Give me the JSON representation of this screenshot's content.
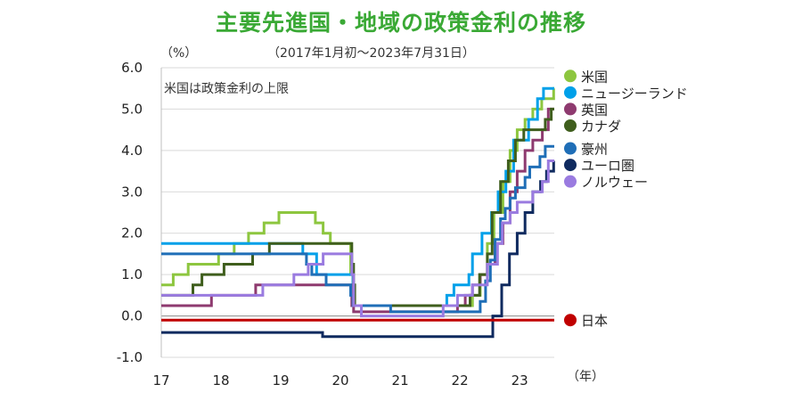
{
  "title": "主要先進国・地域の政策金利の推移",
  "subtitle": "（2017年1月初～2023年7月31日）",
  "y_unit": "（%）",
  "x_unit": "（年）",
  "note": "米国は政策金利の上限",
  "chart_data": {
    "type": "line",
    "step": true,
    "ylim": [
      -1.0,
      6.0
    ],
    "yticks": [
      "6.0",
      "5.0",
      "4.0",
      "3.0",
      "2.0",
      "1.0",
      "0.0",
      "-1.0"
    ],
    "xlim": [
      2017.0,
      2023.58
    ],
    "xticks": [
      {
        "value": 2017,
        "label": "17"
      },
      {
        "value": 2018,
        "label": "18"
      },
      {
        "value": 2019,
        "label": "19"
      },
      {
        "value": 2020,
        "label": "20"
      },
      {
        "value": 2021,
        "label": "21"
      },
      {
        "value": 2022,
        "label": "22"
      },
      {
        "value": 2023,
        "label": "23"
      }
    ],
    "grid": "horizontal",
    "legend_position": "right",
    "series": [
      {
        "name": "米国",
        "color": "#8dc63f",
        "points": [
          [
            2017.0,
            0.75
          ],
          [
            2017.2,
            1.0
          ],
          [
            2017.45,
            1.25
          ],
          [
            2017.96,
            1.5
          ],
          [
            2018.22,
            1.75
          ],
          [
            2018.46,
            2.0
          ],
          [
            2018.72,
            2.25
          ],
          [
            2018.97,
            2.5
          ],
          [
            2019.58,
            2.25
          ],
          [
            2019.71,
            2.0
          ],
          [
            2019.83,
            1.75
          ],
          [
            2020.17,
            1.0
          ],
          [
            2020.21,
            0.25
          ],
          [
            2022.21,
            0.5
          ],
          [
            2022.34,
            1.0
          ],
          [
            2022.46,
            1.75
          ],
          [
            2022.57,
            2.5
          ],
          [
            2022.72,
            3.25
          ],
          [
            2022.84,
            4.0
          ],
          [
            2022.96,
            4.5
          ],
          [
            2023.09,
            4.75
          ],
          [
            2023.22,
            5.0
          ],
          [
            2023.37,
            5.25
          ],
          [
            2023.57,
            5.5
          ],
          [
            2023.58,
            5.5
          ]
        ]
      },
      {
        "name": "ニュージーランド",
        "color": "#00a0e9",
        "points": [
          [
            2017.0,
            1.75
          ],
          [
            2019.37,
            1.5
          ],
          [
            2019.6,
            1.0
          ],
          [
            2020.21,
            0.25
          ],
          [
            2021.78,
            0.5
          ],
          [
            2021.9,
            0.75
          ],
          [
            2022.15,
            1.0
          ],
          [
            2022.21,
            1.5
          ],
          [
            2022.37,
            2.0
          ],
          [
            2022.53,
            2.5
          ],
          [
            2022.64,
            3.0
          ],
          [
            2022.77,
            3.5
          ],
          [
            2022.9,
            4.25
          ],
          [
            2023.15,
            4.75
          ],
          [
            2023.3,
            5.25
          ],
          [
            2023.4,
            5.5
          ],
          [
            2023.58,
            5.5
          ]
        ]
      },
      {
        "name": "英国",
        "color": "#8e3a6f",
        "points": [
          [
            2017.0,
            0.25
          ],
          [
            2017.84,
            0.5
          ],
          [
            2018.58,
            0.75
          ],
          [
            2020.19,
            0.25
          ],
          [
            2020.22,
            0.1
          ],
          [
            2021.96,
            0.25
          ],
          [
            2022.09,
            0.5
          ],
          [
            2022.21,
            0.75
          ],
          [
            2022.34,
            1.0
          ],
          [
            2022.46,
            1.25
          ],
          [
            2022.59,
            1.75
          ],
          [
            2022.72,
            2.25
          ],
          [
            2022.84,
            3.0
          ],
          [
            2022.96,
            3.5
          ],
          [
            2023.09,
            4.0
          ],
          [
            2023.22,
            4.25
          ],
          [
            2023.38,
            4.5
          ],
          [
            2023.48,
            5.0
          ],
          [
            2023.58,
            5.0
          ]
        ]
      },
      {
        "name": "カナダ",
        "color": "#3f5e1d",
        "points": [
          [
            2017.0,
            0.5
          ],
          [
            2017.53,
            0.75
          ],
          [
            2017.68,
            1.0
          ],
          [
            2018.05,
            1.25
          ],
          [
            2018.53,
            1.5
          ],
          [
            2018.81,
            1.75
          ],
          [
            2020.19,
            1.25
          ],
          [
            2020.22,
            0.75
          ],
          [
            2020.24,
            0.25
          ],
          [
            2022.17,
            0.5
          ],
          [
            2022.33,
            1.0
          ],
          [
            2022.46,
            1.5
          ],
          [
            2022.54,
            2.5
          ],
          [
            2022.68,
            3.25
          ],
          [
            2022.81,
            3.75
          ],
          [
            2022.93,
            4.25
          ],
          [
            2023.07,
            4.5
          ],
          [
            2023.43,
            4.75
          ],
          [
            2023.53,
            5.0
          ],
          [
            2023.58,
            5.0
          ]
        ]
      },
      {
        "name": "豪州",
        "color": "#1f6eb7",
        "points": [
          [
            2017.0,
            1.5
          ],
          [
            2019.43,
            1.25
          ],
          [
            2019.52,
            1.0
          ],
          [
            2019.76,
            0.75
          ],
          [
            2020.17,
            0.5
          ],
          [
            2020.21,
            0.25
          ],
          [
            2020.84,
            0.1
          ],
          [
            2022.34,
            0.35
          ],
          [
            2022.43,
            0.85
          ],
          [
            2022.51,
            1.35
          ],
          [
            2022.59,
            1.85
          ],
          [
            2022.68,
            2.35
          ],
          [
            2022.76,
            2.6
          ],
          [
            2022.84,
            2.85
          ],
          [
            2022.93,
            3.1
          ],
          [
            2023.09,
            3.35
          ],
          [
            2023.17,
            3.6
          ],
          [
            2023.26,
            3.6
          ],
          [
            2023.34,
            3.85
          ],
          [
            2023.43,
            4.1
          ],
          [
            2023.58,
            4.1
          ]
        ]
      },
      {
        "name": "ユーロ圏",
        "color": "#0f2a5f",
        "points": [
          [
            2017.0,
            -0.4
          ],
          [
            2019.7,
            -0.5
          ],
          [
            2022.55,
            0.0
          ],
          [
            2022.7,
            0.75
          ],
          [
            2022.83,
            1.5
          ],
          [
            2022.96,
            2.0
          ],
          [
            2023.09,
            2.5
          ],
          [
            2023.22,
            3.0
          ],
          [
            2023.35,
            3.25
          ],
          [
            2023.45,
            3.5
          ],
          [
            2023.57,
            3.75
          ],
          [
            2023.58,
            3.75
          ]
        ]
      },
      {
        "name": "ノルウェー",
        "color": "#9a7be0",
        "points": [
          [
            2017.0,
            0.5
          ],
          [
            2018.7,
            0.75
          ],
          [
            2019.22,
            1.0
          ],
          [
            2019.46,
            1.25
          ],
          [
            2019.71,
            1.5
          ],
          [
            2020.19,
            1.0
          ],
          [
            2020.22,
            0.25
          ],
          [
            2020.35,
            0.0
          ],
          [
            2021.72,
            0.25
          ],
          [
            2021.96,
            0.5
          ],
          [
            2022.21,
            0.75
          ],
          [
            2022.46,
            1.25
          ],
          [
            2022.63,
            1.75
          ],
          [
            2022.71,
            2.25
          ],
          [
            2022.84,
            2.5
          ],
          [
            2022.96,
            2.75
          ],
          [
            2023.22,
            3.0
          ],
          [
            2023.38,
            3.25
          ],
          [
            2023.48,
            3.75
          ],
          [
            2023.58,
            3.75
          ]
        ]
      },
      {
        "name": "日本",
        "color": "#c00000",
        "points": [
          [
            2017.0,
            -0.1
          ],
          [
            2023.58,
            -0.1
          ]
        ]
      }
    ],
    "legend": [
      {
        "name": "米国",
        "color": "#8dc63f",
        "y": 5.8
      },
      {
        "name": "ニュージーランド",
        "color": "#00a0e9",
        "y": 5.4
      },
      {
        "name": "英国",
        "color": "#8e3a6f",
        "y": 5.0
      },
      {
        "name": "カナダ",
        "color": "#3f5e1d",
        "y": 4.6
      },
      {
        "name": "豪州",
        "color": "#1f6eb7",
        "y": 4.05
      },
      {
        "name": "ユーロ圏",
        "color": "#0f2a5f",
        "y": 3.65
      },
      {
        "name": "ノルウェー",
        "color": "#9a7be0",
        "y": 3.25
      },
      {
        "name": "日本",
        "color": "#c00000",
        "y": -0.1
      }
    ]
  }
}
